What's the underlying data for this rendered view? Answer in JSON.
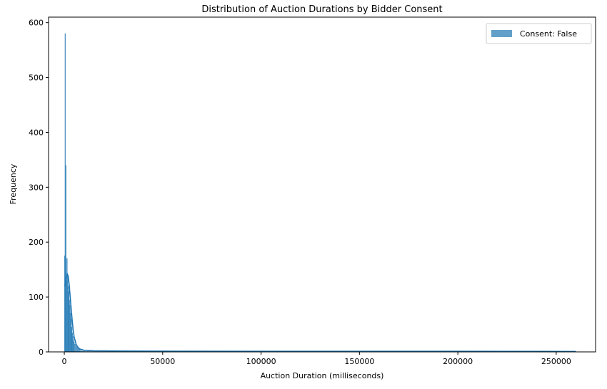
{
  "chart_data": {
    "type": "histogram",
    "title": "Distribution of Auction Durations by Bidder Consent",
    "xlabel": "Auction Duration (milliseconds)",
    "ylabel": "Frequency",
    "xlim": [
      -8000,
      270000
    ],
    "ylim": [
      0,
      610
    ],
    "x_ticks": [
      0,
      50000,
      100000,
      150000,
      200000,
      250000
    ],
    "y_ticks": [
      0,
      100,
      200,
      300,
      400,
      500,
      600
    ],
    "grid": false,
    "legend_position": "top-right",
    "series": [
      {
        "name": "Consent: False",
        "color": "#1f77b4",
        "alpha": 0.7,
        "bars": [
          {
            "x": 200,
            "y": 175
          },
          {
            "x": 500,
            "y": 580
          },
          {
            "x": 800,
            "y": 340
          },
          {
            "x": 1100,
            "y": 130
          },
          {
            "x": 1400,
            "y": 170
          },
          {
            "x": 1700,
            "y": 140
          },
          {
            "x": 2000,
            "y": 120
          },
          {
            "x": 2300,
            "y": 110
          },
          {
            "x": 2600,
            "y": 95
          },
          {
            "x": 2900,
            "y": 85
          },
          {
            "x": 3200,
            "y": 70
          },
          {
            "x": 3500,
            "y": 60
          },
          {
            "x": 3800,
            "y": 45
          },
          {
            "x": 4100,
            "y": 35
          },
          {
            "x": 4400,
            "y": 28
          },
          {
            "x": 4700,
            "y": 22
          },
          {
            "x": 5000,
            "y": 18
          },
          {
            "x": 5500,
            "y": 14
          },
          {
            "x": 6000,
            "y": 11
          },
          {
            "x": 6500,
            "y": 9
          },
          {
            "x": 7000,
            "y": 7
          },
          {
            "x": 7500,
            "y": 5
          },
          {
            "x": 8000,
            "y": 4
          },
          {
            "x": 9000,
            "y": 3
          },
          {
            "x": 10000,
            "y": 2
          },
          {
            "x": 12000,
            "y": 1
          }
        ],
        "kde": [
          [
            0,
            120
          ],
          [
            500,
            122
          ],
          [
            1000,
            135
          ],
          [
            1500,
            142
          ],
          [
            2000,
            138
          ],
          [
            2500,
            122
          ],
          [
            3000,
            100
          ],
          [
            3500,
            78
          ],
          [
            4000,
            58
          ],
          [
            4500,
            40
          ],
          [
            5000,
            27
          ],
          [
            6000,
            14
          ],
          [
            7000,
            8
          ],
          [
            8000,
            5
          ],
          [
            10000,
            3
          ],
          [
            15000,
            2
          ],
          [
            30000,
            1.5
          ],
          [
            60000,
            1.2
          ],
          [
            120000,
            1
          ],
          [
            200000,
            1
          ],
          [
            260000,
            0.8
          ]
        ],
        "tail_extent": [
          0,
          260000
        ]
      }
    ]
  }
}
